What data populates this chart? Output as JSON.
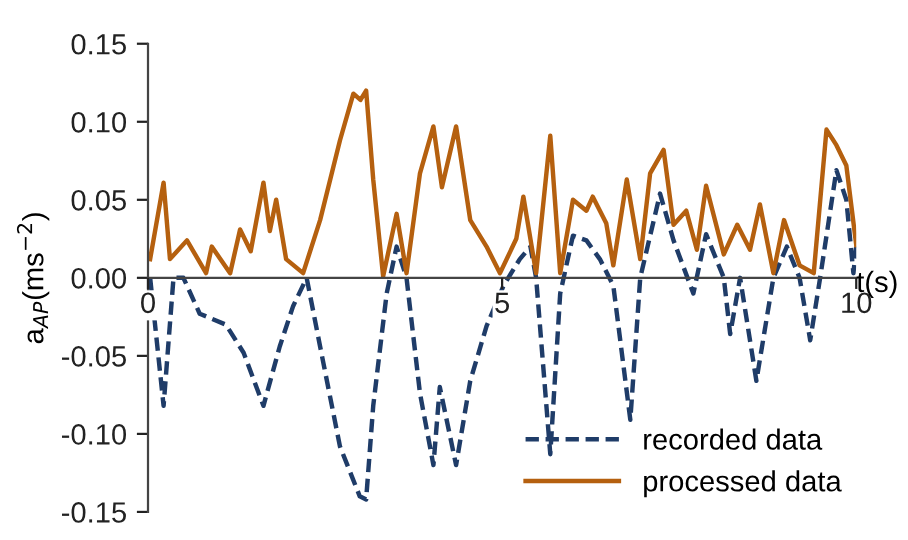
{
  "chart_data": {
    "type": "line",
    "xlabel": "t(s)",
    "ylabel": "a$_{AP}$(ms$^{−2}$)",
    "xlim": [
      0,
      10
    ],
    "xticks": [
      0,
      5,
      10
    ],
    "ylim": [
      -0.15,
      0.15
    ],
    "yticks": [
      {
        "value": -0.15,
        "label": "-0.15"
      },
      {
        "value": -0.1,
        "label": "-0.10"
      },
      {
        "value": -0.05,
        "label": "-0.05"
      },
      {
        "value": 0,
        "label": "0.00"
      },
      {
        "value": 0.05,
        "label": "0.05"
      },
      {
        "value": 0.1,
        "label": "0.10"
      },
      {
        "value": 0.15,
        "label": "0.15"
      }
    ],
    "legend": "bottom right",
    "grid": false,
    "series": [
      {
        "name": "recorded data",
        "color": "#1f3c68",
        "line_style": "dashed",
        "x": [
          0.03,
          0.22,
          0.36,
          0.5,
          0.73,
          1.1,
          1.35,
          1.63,
          1.86,
          2.05,
          2.24,
          2.43,
          2.71,
          2.99,
          3.08,
          3.18,
          3.37,
          3.51,
          3.65,
          3.84,
          4.03,
          4.12,
          4.35,
          4.55,
          4.78,
          5.02,
          5.25,
          5.4,
          5.48,
          5.68,
          5.82,
          6.0,
          6.19,
          6.38,
          6.57,
          6.81,
          6.95,
          7.23,
          7.42,
          7.7,
          7.88,
          8.13,
          8.22,
          8.36,
          8.59,
          8.83,
          9.02,
          9.2,
          9.35,
          9.49,
          9.72,
          9.86,
          9.96,
          10.0
        ],
        "values": [
          0.0,
          -0.082,
          0.0,
          0.0,
          -0.023,
          -0.03,
          -0.048,
          -0.082,
          -0.044,
          -0.018,
          0.0,
          -0.044,
          -0.108,
          -0.14,
          -0.142,
          -0.082,
          -0.01,
          0.02,
          0.0,
          -0.074,
          -0.12,
          -0.07,
          -0.12,
          -0.066,
          -0.031,
          -0.005,
          0.012,
          0.02,
          0.0,
          -0.113,
          -0.01,
          0.027,
          0.024,
          0.012,
          -0.005,
          -0.091,
          0.0,
          0.054,
          0.024,
          -0.01,
          0.028,
          0.0,
          -0.036,
          0.0,
          -0.066,
          0.0,
          0.02,
          0.0,
          -0.04,
          0.0,
          0.069,
          0.05,
          0.003,
          0.02
        ]
      },
      {
        "name": "processed data",
        "color": "#b5600f",
        "line_style": "solid",
        "x": [
          0.03,
          0.22,
          0.31,
          0.55,
          0.82,
          0.9,
          1.16,
          1.3,
          1.45,
          1.63,
          1.72,
          1.81,
          1.95,
          2.19,
          2.43,
          2.71,
          2.9,
          3.0,
          3.08,
          3.18,
          3.32,
          3.51,
          3.65,
          3.84,
          4.03,
          4.15,
          4.35,
          4.55,
          4.78,
          4.97,
          5.2,
          5.3,
          5.48,
          5.68,
          5.82,
          6.0,
          6.19,
          6.28,
          6.47,
          6.57,
          6.76,
          6.95,
          7.09,
          7.28,
          7.42,
          7.6,
          7.75,
          7.88,
          8.13,
          8.32,
          8.5,
          8.64,
          8.83,
          8.98,
          9.2,
          9.4,
          9.58,
          9.72,
          9.86,
          10.0
        ],
        "values": [
          0.012,
          0.061,
          0.012,
          0.024,
          0.003,
          0.02,
          0.003,
          0.031,
          0.017,
          0.061,
          0.03,
          0.05,
          0.012,
          0.003,
          0.037,
          0.088,
          0.118,
          0.114,
          0.12,
          0.063,
          0.001,
          0.041,
          0.003,
          0.067,
          0.097,
          0.058,
          0.097,
          0.037,
          0.02,
          0.003,
          0.025,
          0.052,
          0.003,
          0.091,
          0.003,
          0.05,
          0.043,
          0.052,
          0.035,
          0.008,
          0.063,
          0.012,
          0.067,
          0.082,
          0.034,
          0.043,
          0.018,
          0.059,
          0.015,
          0.034,
          0.018,
          0.047,
          0.003,
          0.037,
          0.008,
          0.003,
          0.095,
          0.085,
          0.072,
          0.021
        ]
      }
    ]
  }
}
